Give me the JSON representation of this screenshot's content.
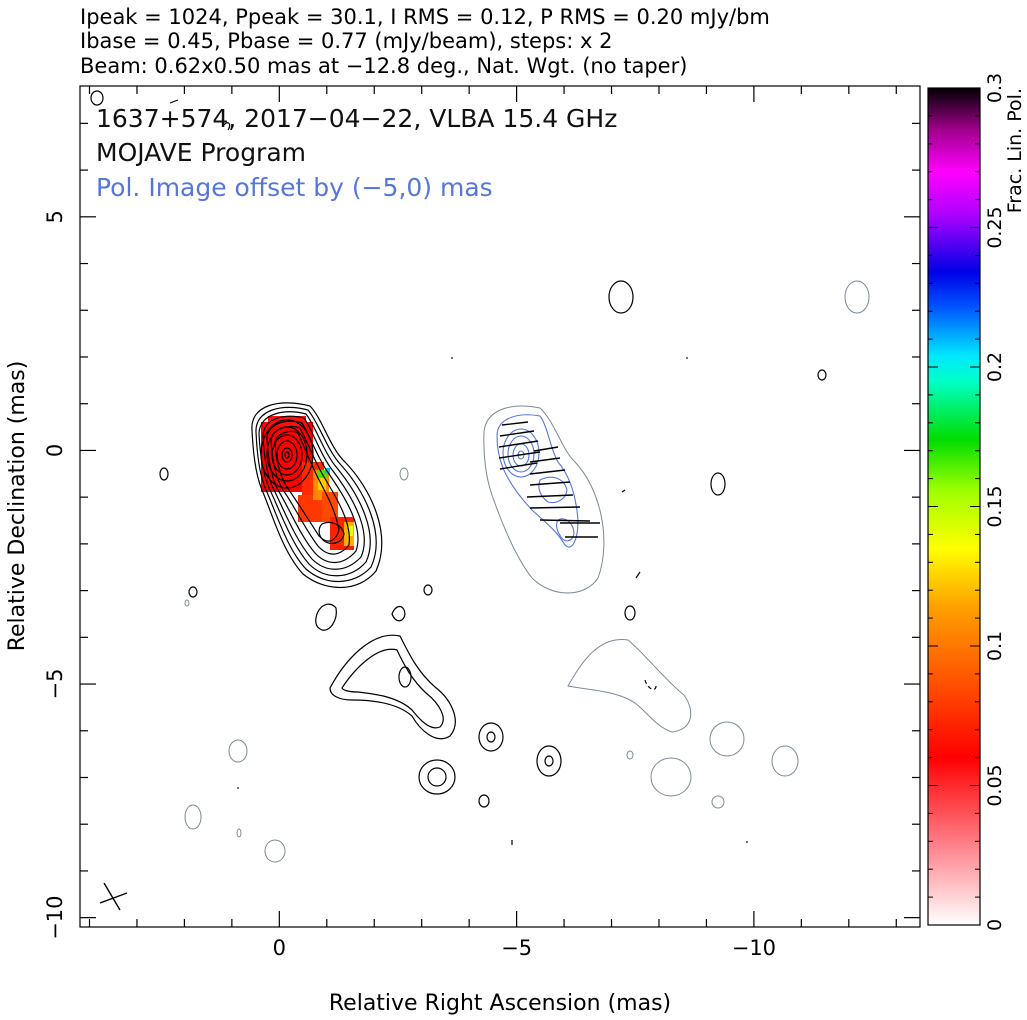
{
  "header": {
    "line1": "Ipeak = 1024, Ppeak = 30.1, I RMS = 0.12, P RMS = 0.20 mJy/bm",
    "line2": "Ibase = 0.45, Pbase = 0.77 (mJy/beam), steps: x 2",
    "line3": "Beam: 0.62x0.50 mas at −12.8 deg., Nat. Wgt. (no taper)"
  },
  "plot": {
    "title_line1": "1637+574, 2017−04−22, VLBA 15.4 GHz",
    "title_line2": "MOJAVE Program",
    "title_line3": "Pol. Image offset by (−5,0) mas"
  },
  "colors": {
    "total_intensity_contour": "#000000",
    "pol_contour": "#5577dd",
    "lowest_pol_contour": "#7a8a99",
    "evpa_tick": "#000000",
    "title_blue": "#5577dd"
  },
  "chart_data": {
    "type": "contour",
    "xlabel": "Relative Right Ascension (mas)",
    "ylabel": "Relative Declination (mas)",
    "xlim": [
      4.2,
      -13.5
    ],
    "ylim": [
      -10.2,
      7.8
    ],
    "xticks": [
      {
        "value": 0,
        "label": "0"
      },
      {
        "value": -5,
        "label": "−5"
      },
      {
        "value": -10,
        "label": "−10"
      }
    ],
    "yticks": [
      {
        "value": 5,
        "label": "5"
      },
      {
        "value": 0,
        "label": "0"
      },
      {
        "value": -5,
        "label": "−5"
      },
      {
        "value": -10,
        "label": "−10"
      }
    ],
    "colorbar": {
      "label": "Frac. Lin. Pol.",
      "range": [
        0,
        0.3
      ],
      "ticks": [
        {
          "value": 0,
          "label": "0"
        },
        {
          "value": 0.05,
          "label": "0.05"
        },
        {
          "value": 0.1,
          "label": "0.1"
        },
        {
          "value": 0.15,
          "label": "0.15"
        },
        {
          "value": 0.2,
          "label": "0.2"
        },
        {
          "value": 0.25,
          "label": "0.25"
        },
        {
          "value": 0.3,
          "label": "0.3"
        }
      ]
    },
    "core": {
      "x": 0,
      "y": -0.15
    },
    "beam": {
      "major": 0.62,
      "minor": 0.5,
      "pa": -12.8
    },
    "pol_offset": [
      -5,
      0
    ],
    "fractional_pol_pixels": [
      {
        "x": 0.0,
        "y": -0.2,
        "f": 0.02
      },
      {
        "x": 0.8,
        "y": -0.9,
        "f": 0.07
      },
      {
        "x": 0.95,
        "y": -0.55,
        "f": 0.17
      },
      {
        "x": 1.3,
        "y": -1.8,
        "f": 0.1
      },
      {
        "x": 0.6,
        "y": -1.4,
        "f": 0.05
      }
    ]
  }
}
